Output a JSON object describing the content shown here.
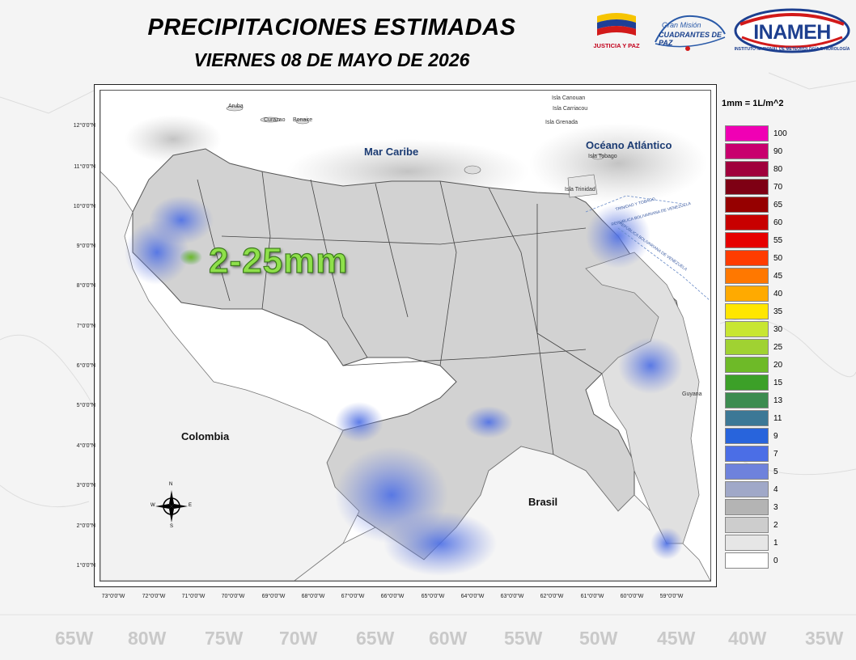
{
  "header": {
    "title": "PRECIPITACIONES ESTIMADAS",
    "subtitle": "VIERNES 08 DE MAYO DE 2026"
  },
  "logos": {
    "justicia": "JUSTICIA Y PAZ",
    "gran_mision_top": "Gran Misión",
    "gran_mision_bottom": "CUADRANTES DE PAZ",
    "inameh": "INAMEH",
    "inameh_sub": "INSTITUTO NACIONAL DE METEOROLOGÍA E HIDROLOGÍA"
  },
  "map": {
    "lat_labels": [
      "12°0'0\"N",
      "11°0'0\"N",
      "10°0'0\"N",
      "9°0'0\"N",
      "8°0'0\"N",
      "7°0'0\"N",
      "6°0'0\"N",
      "5°0'0\"N",
      "4°0'0\"N",
      "3°0'0\"N",
      "2°0'0\"N",
      "1°0'0\"N"
    ],
    "lon_labels": [
      "73°0'0\"W",
      "72°0'0\"W",
      "71°0'0\"W",
      "70°0'0\"W",
      "69°0'0\"W",
      "68°0'0\"W",
      "67°0'0\"W",
      "66°0'0\"W",
      "65°0'0\"W",
      "64°0'0\"W",
      "63°0'0\"W",
      "62°0'0\"W",
      "61°0'0\"W",
      "60°0'0\"W",
      "59°0'0\"W"
    ],
    "places": {
      "mar_caribe": "Mar Caribe",
      "oceano_atlantico": "Océano Atlántico",
      "colombia": "Colombia",
      "brasil": "Brasil",
      "guyana": "Guyana",
      "aruba": "Aruba",
      "curazao": "Curazao",
      "bonaire": "Bonaire",
      "isla_canouan": "Isla Canouan",
      "isla_carriacou": "Isla Carriacou",
      "isla_grenada": "Isla Grenada",
      "isla_tobago": "Isla Tobago",
      "isla_trinidad": "Isla Trinidad",
      "trinidad_tobago": "TRINIDAD Y TOBAGO",
      "rep_bolivariana": "REPÚBLICA BOLIVARIANA DE VENEZUELA"
    },
    "amount_label": "2-25mm",
    "compass": {
      "n": "N",
      "s": "S",
      "e": "E",
      "w": "W"
    }
  },
  "legend": {
    "unit": "1mm = 1L/m^2",
    "items": [
      {
        "value": "100",
        "color": "#f000b4"
      },
      {
        "value": "90",
        "color": "#c8006e"
      },
      {
        "value": "80",
        "color": "#a0003c"
      },
      {
        "value": "70",
        "color": "#7e0014"
      },
      {
        "value": "65",
        "color": "#960000"
      },
      {
        "value": "60",
        "color": "#c80000"
      },
      {
        "value": "55",
        "color": "#e60000"
      },
      {
        "value": "50",
        "color": "#ff3c00"
      },
      {
        "value": "45",
        "color": "#ff7800"
      },
      {
        "value": "40",
        "color": "#ffaa00"
      },
      {
        "value": "35",
        "color": "#ffe600"
      },
      {
        "value": "30",
        "color": "#c8e632"
      },
      {
        "value": "25",
        "color": "#a0d232"
      },
      {
        "value": "20",
        "color": "#6eba28"
      },
      {
        "value": "15",
        "color": "#3ca028"
      },
      {
        "value": "13",
        "color": "#3c8c50"
      },
      {
        "value": "11",
        "color": "#3c7896"
      },
      {
        "value": "9",
        "color": "#2864dc"
      },
      {
        "value": "7",
        "color": "#4b6ee6"
      },
      {
        "value": "5",
        "color": "#6e82dc"
      },
      {
        "value": "4",
        "color": "#a0a8c8"
      },
      {
        "value": "3",
        "color": "#b4b4b4"
      },
      {
        "value": "2",
        "color": "#cdcdcd"
      },
      {
        "value": "1",
        "color": "#e6e6e6"
      },
      {
        "value": "0",
        "color": "#ffffff"
      }
    ]
  },
  "bottom_ticks": [
    "65W",
    "80W",
    "75W",
    "70W",
    "65W",
    "60W",
    "55W",
    "50W",
    "45W",
    "40W",
    "35W"
  ]
}
